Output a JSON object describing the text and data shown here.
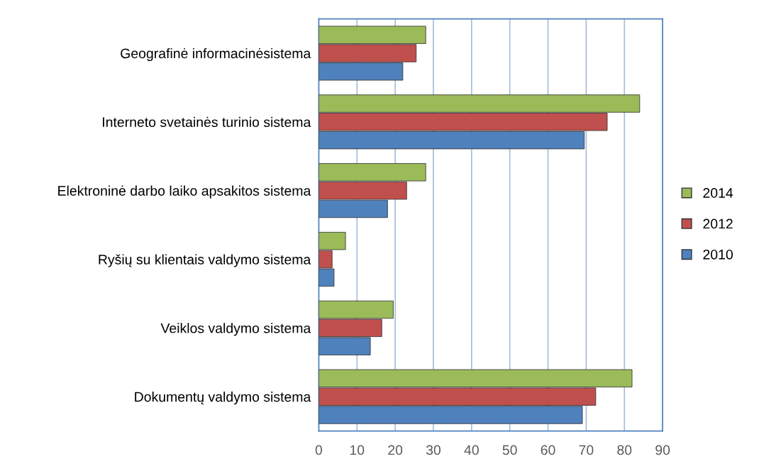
{
  "chart_data": {
    "type": "bar",
    "orientation": "horizontal",
    "categories": [
      "Geografinė informacinėsistema",
      "Interneto svetainės turinio sistema",
      "Elektroninė darbo laiko apsakitos sistema",
      "Ryšių su klientais valdymo sistema",
      "Veiklos valdymo sistema",
      "Dokumentų valdymo sistema"
    ],
    "series": [
      {
        "name": "2010",
        "color": "#4f81bd",
        "values": [
          22,
          69.5,
          18,
          4,
          13.5,
          69
        ]
      },
      {
        "name": "2012",
        "color": "#c0504d",
        "values": [
          25.5,
          75.5,
          23,
          3.5,
          16.5,
          72.5
        ]
      },
      {
        "name": "2014",
        "color": "#9bbb59",
        "values": [
          28,
          84,
          28,
          7,
          19.5,
          82
        ]
      }
    ],
    "xlim": [
      0,
      90
    ],
    "xticks": [
      0,
      10,
      20,
      30,
      40,
      50,
      60,
      70,
      80,
      90
    ],
    "grid": "x",
    "legend": "right"
  }
}
